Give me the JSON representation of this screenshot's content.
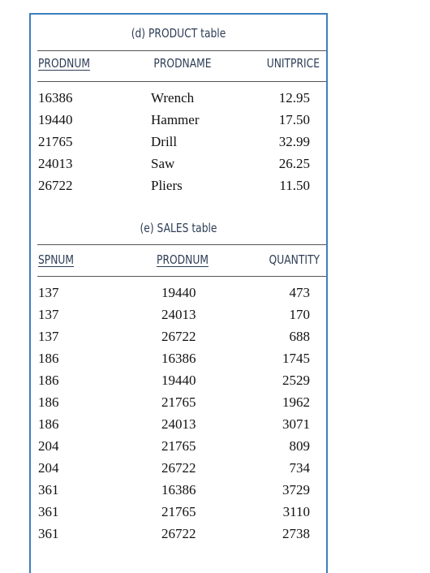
{
  "product_table": {
    "caption": "(d) PRODUCT table",
    "headers": [
      "PRODNUM",
      "PRODNAME",
      "UNITPRICE"
    ],
    "rows": [
      [
        "16386",
        "Wrench",
        "12.95"
      ],
      [
        "19440",
        "Hammer",
        "17.50"
      ],
      [
        "21765",
        "Drill",
        "32.99"
      ],
      [
        "24013",
        "Saw",
        "26.25"
      ],
      [
        "26722",
        "Pliers",
        "11.50"
      ]
    ]
  },
  "sales_table": {
    "caption": "(e) SALES table",
    "headers": [
      "SPNUM",
      "PRODNUM",
      "QUANTITY"
    ],
    "rows": [
      [
        "137",
        "19440",
        "473"
      ],
      [
        "137",
        "24013",
        "170"
      ],
      [
        "137",
        "26722",
        "688"
      ],
      [
        "186",
        "16386",
        "1745"
      ],
      [
        "186",
        "19440",
        "2529"
      ],
      [
        "186",
        "21765",
        "1962"
      ],
      [
        "186",
        "24013",
        "3071"
      ],
      [
        "204",
        "21765",
        "809"
      ],
      [
        "204",
        "26722",
        "734"
      ],
      [
        "361",
        "16386",
        "3729"
      ],
      [
        "361",
        "21765",
        "3110"
      ],
      [
        "361",
        "26722",
        "2738"
      ]
    ]
  },
  "colors": {
    "border": "#3f7fbd",
    "header_text": "#2e3d56"
  }
}
